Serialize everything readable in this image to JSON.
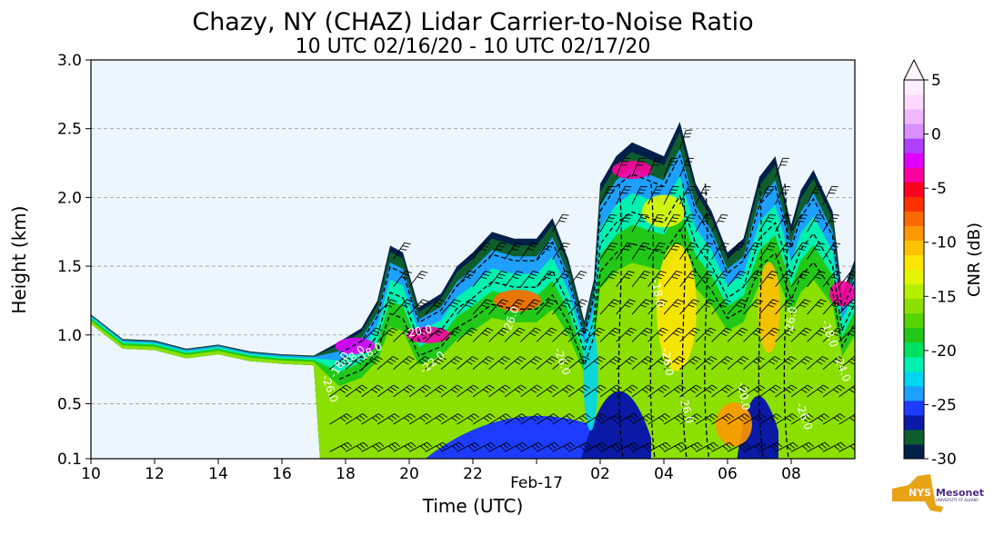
{
  "chart_data": {
    "type": "heatmap",
    "title": "Chazy, NY (CHAZ) Lidar Carrier-to-Noise Ratio",
    "subtitle": "10 UTC 02/16/20 - 10 UTC 02/17/20",
    "xlabel": "Time (UTC)",
    "ylabel": "Height (km)",
    "x_ticks": [
      "10",
      "12",
      "14",
      "16",
      "18",
      "20",
      "22",
      "Feb-17",
      "02",
      "04",
      "06",
      "08"
    ],
    "x_range_hours": [
      10,
      34
    ],
    "y_ticks": [
      "0.1",
      "0.5",
      "1.0",
      "1.5",
      "2.0",
      "2.5",
      "3.0"
    ],
    "y_tick_values": [
      0.1,
      0.5,
      1.0,
      1.5,
      2.0,
      2.5,
      3.0
    ],
    "ylim": [
      0.1,
      3.0
    ],
    "grid": "horizontal dashed",
    "background_color": "#eef6fd",
    "colorbar": {
      "label": "CNR (dB)",
      "ticks": [
        "5",
        "0",
        "-5",
        "-10",
        "-15",
        "-20",
        "-25",
        "-30"
      ],
      "tick_values": [
        5,
        0,
        -5,
        -10,
        -15,
        -20,
        -25,
        -30
      ],
      "range": [
        -30,
        5
      ],
      "colors": [
        "#00204a",
        "#0f5e2e",
        "#0a1aa6",
        "#1d3cff",
        "#1da0ff",
        "#00d6f0",
        "#00f0b0",
        "#00e060",
        "#22c818",
        "#55d400",
        "#8be000",
        "#b6ee00",
        "#e4f500",
        "#ffe600",
        "#ffc000",
        "#ff9800",
        "#ff6a00",
        "#ff3000",
        "#ff0020",
        "#ff00a0",
        "#e000ff",
        "#b040ff",
        "#d890ff",
        "#f0b8ff",
        "#ffd8ff",
        "#ffeeff"
      ]
    },
    "contour_labels": [
      "-26.0",
      "-18.0",
      "-18.0",
      "-18.0",
      "-20.0",
      "-22.0",
      "-26.0",
      "-26.0",
      "-18.0",
      "-26.0",
      "-26.0",
      "-20.0",
      "-26.0",
      "-26.0",
      "-18.0",
      "-24.0"
    ],
    "profile_top_km": [
      [
        10,
        1.15
      ],
      [
        11,
        0.97
      ],
      [
        12,
        0.96
      ],
      [
        13,
        0.9
      ],
      [
        14,
        0.93
      ],
      [
        15,
        0.88
      ],
      [
        16,
        0.86
      ],
      [
        17,
        0.85
      ],
      [
        17.8,
        0.95
      ],
      [
        18.5,
        1.05
      ],
      [
        19,
        1.25
      ],
      [
        19.4,
        1.65
      ],
      [
        19.8,
        1.6
      ],
      [
        20.3,
        1.2
      ],
      [
        21,
        1.3
      ],
      [
        21.5,
        1.5
      ],
      [
        22,
        1.6
      ],
      [
        22.6,
        1.75
      ],
      [
        23.3,
        1.7
      ],
      [
        24,
        1.7
      ],
      [
        24.5,
        1.85
      ],
      [
        25,
        1.55
      ],
      [
        25.5,
        1.1
      ],
      [
        25.8,
        1.4
      ],
      [
        26,
        2.1
      ],
      [
        26.5,
        2.3
      ],
      [
        27,
        2.4
      ],
      [
        28,
        2.3
      ],
      [
        28.5,
        2.55
      ],
      [
        29,
        2.1
      ],
      [
        29.5,
        1.9
      ],
      [
        30,
        1.6
      ],
      [
        30.5,
        1.7
      ],
      [
        31,
        2.15
      ],
      [
        31.5,
        2.3
      ],
      [
        32,
        1.8
      ],
      [
        32.3,
        2.05
      ],
      [
        32.7,
        2.2
      ],
      [
        33.3,
        1.9
      ],
      [
        33.6,
        1.3
      ],
      [
        34,
        1.55
      ]
    ]
  },
  "logo": {
    "name": "NYS Mesonet",
    "text": "NYS",
    "text2": "Mesonet",
    "subtext": "UNIVERSITY AT ALBANY"
  }
}
